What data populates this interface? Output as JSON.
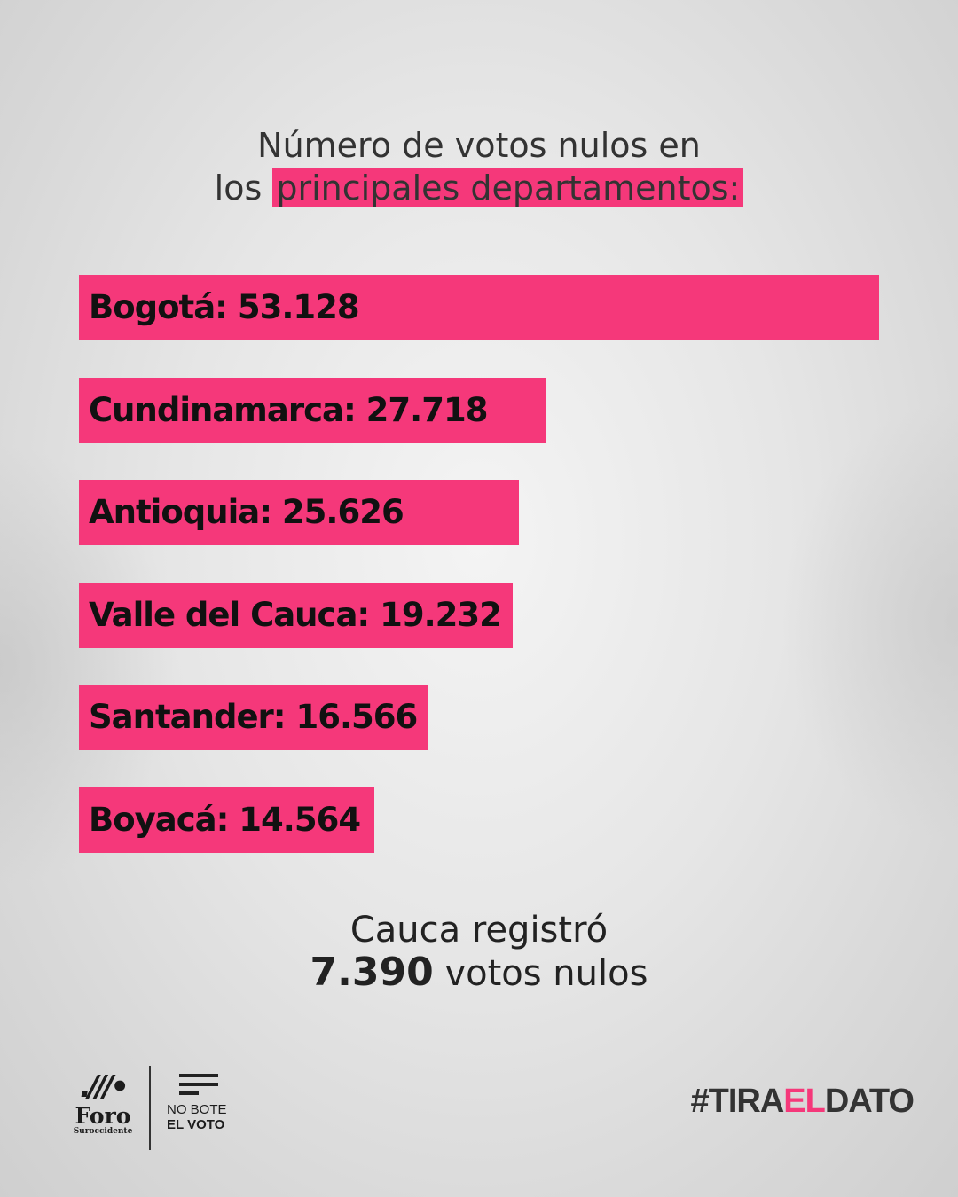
{
  "title": {
    "line1": "Número de votos nulos en",
    "line2_plain": "los",
    "line2_highlight": "principales departamentos:"
  },
  "chart_data": {
    "type": "bar",
    "orientation": "horizontal",
    "categories": [
      "Bogotá",
      "Cundinamarca",
      "Antioquia",
      "Valle del Cauca",
      "Santander",
      "Boyacá"
    ],
    "values": [
      53128,
      27718,
      25626,
      19232,
      16566,
      14564
    ],
    "labels": [
      "Bogotá: 53.128",
      "Cundinamarca: 27.718",
      "Antioquia: 25.626",
      "Valle del Cauca: 19.232",
      "Santander: 16.566",
      "Boyacá: 14.564"
    ],
    "bar_color": "#f5387a",
    "grid": false
  },
  "note": {
    "line1": "Cauca registró",
    "number": "7.390",
    "line2_rest": "votos nulos"
  },
  "footer": {
    "foro": {
      "name": "Foro",
      "sub": "Suroccidente"
    },
    "campaign": {
      "line1": "NO BOTE",
      "line2": "EL VOTO"
    },
    "hashtag": {
      "pre": "#TIRA",
      "accent": "EL",
      "post": "DATO"
    }
  },
  "colors": {
    "accent": "#f5387a",
    "text": "#1c1c1c"
  }
}
